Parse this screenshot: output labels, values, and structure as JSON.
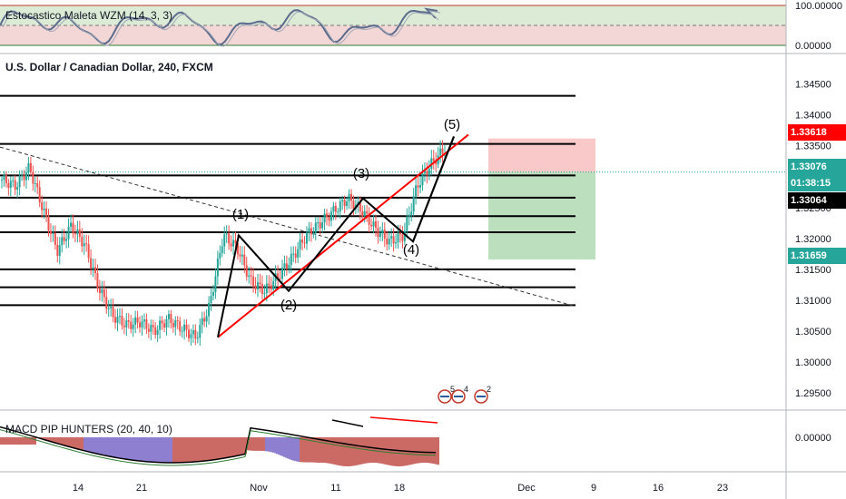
{
  "colors": {
    "up": "#26a69a",
    "down": "#ef5350",
    "target_zone": "#a5d6a7",
    "stop_zone": "#f8bbbb",
    "trend": "#ff0000",
    "level": "#000000",
    "price_red": "#ff0000",
    "price_green": "#26a69a",
    "price_black": "#000000",
    "stoch_line": "#5b6b8c",
    "macd_bull": "#7b68c9",
    "macd_bear": "#c2504a"
  },
  "oscillator_top": {
    "name": "Estocastico Maleta WZM (14, 3, 3)",
    "axis_labels": [
      "100.00000",
      "0.00000"
    ]
  },
  "main": {
    "title": "U.S. Dollar / Canadian Dollar, 240, FXCM",
    "price_labels": [
      "1.34500",
      "1.34000",
      "1.33500",
      "1.33000",
      "1.32500",
      "1.32000",
      "1.31500",
      "1.31000",
      "1.30500",
      "1.30000",
      "1.29500"
    ],
    "markers": {
      "stop": "1.33618",
      "current": "1.33076",
      "countdown": "01:38:15",
      "last": "1.33064",
      "target": "1.31659"
    },
    "wave_labels": [
      "(1)",
      "(2)",
      "(3)",
      "(4)",
      "(5)"
    ],
    "event_badges": [
      "5",
      "4",
      "2"
    ]
  },
  "oscillator_bottom": {
    "name": "MACD PIP HUNTERS (20, 40, 10)",
    "axis_label": "0.00000"
  },
  "x_axis": {
    "labels": [
      "14",
      "21",
      "Nov",
      "11",
      "18",
      "Dec",
      "9",
      "16",
      "23"
    ]
  },
  "chart_data": {
    "type": "candlestick",
    "instrument": "U.S. Dollar / Canadian Dollar",
    "timeframe": "240",
    "ylim": [
      1.2925,
      1.3495
    ],
    "horizontal_levels": [
      1.3431,
      1.3353,
      1.3302,
      1.3266,
      1.3236,
      1.321,
      1.315,
      1.3121,
      1.3092
    ],
    "price_path": [
      1.3295,
      1.3285,
      1.3315,
      1.3245,
      1.318,
      1.322,
      1.319,
      1.312,
      1.3075,
      1.306,
      1.3065,
      1.305,
      1.307,
      1.3055,
      1.304,
      1.309,
      1.3205,
      1.3185,
      1.313,
      1.3115,
      1.314,
      1.317,
      1.3205,
      1.3225,
      1.3245,
      1.3265,
      1.3245,
      1.3215,
      1.3195,
      1.3205,
      1.3285,
      1.332,
      1.3345
    ],
    "elliott_points": [
      {
        "label": "(1)",
        "price": 1.3205
      },
      {
        "label": "(2)",
        "price": 1.3115
      },
      {
        "label": "(3)",
        "price": 1.3265
      },
      {
        "label": "(4)",
        "price": 1.3195
      },
      {
        "label": "(5)",
        "price": 1.3365
      }
    ],
    "position": {
      "stop": 1.33618,
      "entry": 1.33076,
      "target": 1.31659
    }
  }
}
